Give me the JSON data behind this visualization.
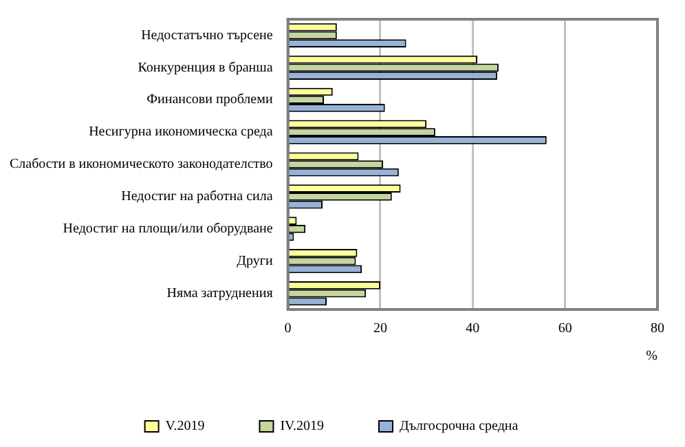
{
  "chart_data": {
    "type": "bar",
    "orientation": "horizontal",
    "categories": [
      "Недостатъчно търсене",
      "Конкуренция в бранша",
      "Финансови проблеми",
      "Несигурна икономическа среда",
      "Слабости в икономическото законодателство",
      "Недостиг на работна сила",
      "Недостиг на площи/или оборудване",
      "Други",
      "Няма затруднения"
    ],
    "series": [
      {
        "name": "V.2019",
        "color": "#ffff99",
        "values": [
          10.6,
          41,
          9.7,
          30,
          15.3,
          24.4,
          1.9,
          15,
          20
        ]
      },
      {
        "name": "IV.2019",
        "color": "#c3d69b",
        "values": [
          10.6,
          45.6,
          7.8,
          31.9,
          20.6,
          22.5,
          3.8,
          14.7,
          16.9
        ]
      },
      {
        "name": "Дългосрочна средна",
        "color": "#95b3d7",
        "values": [
          25.6,
          45.3,
          21,
          56,
          24,
          7.5,
          1.3,
          16,
          8.4
        ]
      }
    ],
    "xlabel": "%",
    "xlim": [
      0,
      80
    ],
    "xticks": [
      0,
      20,
      40,
      60,
      80
    ],
    "grid": "x",
    "legend": "bottom"
  }
}
